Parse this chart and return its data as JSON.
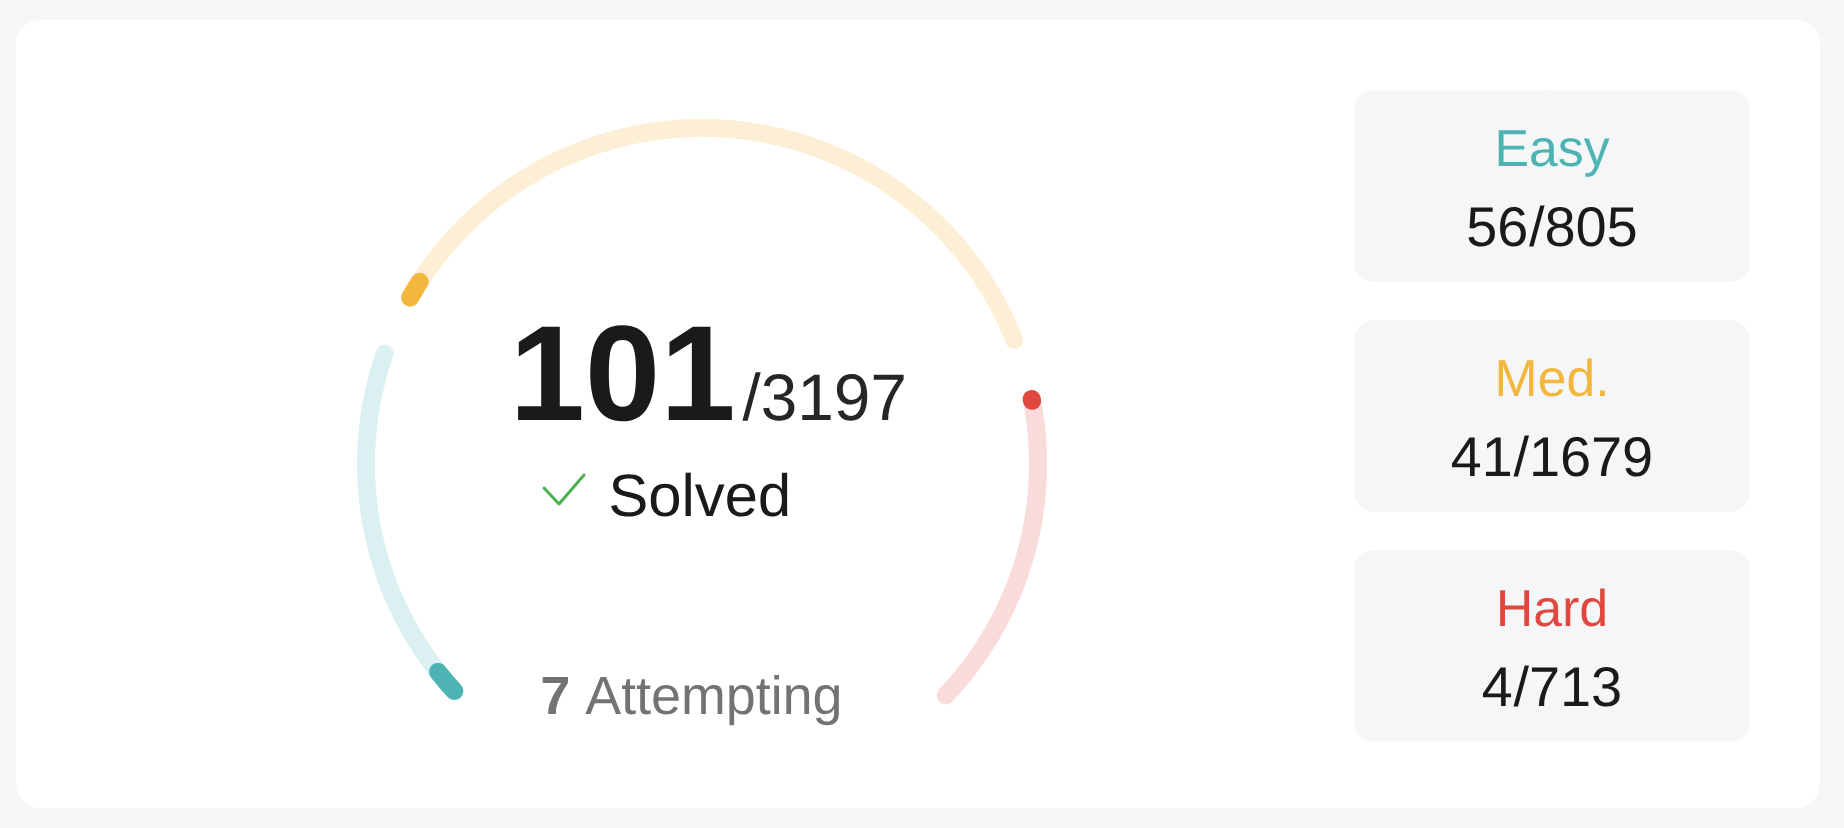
{
  "chart_data": {
    "type": "other",
    "categories": [
      "Easy",
      "Med.",
      "Hard"
    ],
    "series": [
      {
        "values": [
          56,
          41,
          4
        ],
        "colors": [
          "#4db3b3",
          "#f4b73e",
          "#e0473e"
        ],
        "value_labels": [
          "56",
          "41",
          "4"
        ]
      },
      {
        "values": [
          805,
          1679,
          713
        ],
        "colors": [
          "#dbf1f1",
          "#fdefd6",
          "#f9dcda"
        ],
        "value_labels": [
          "/805",
          "/1679",
          "/713"
        ]
      }
    ],
    "annotations": [
      "101",
      "/3197",
      "Solved",
      "**7** Attempting"
    ]
  }
}
